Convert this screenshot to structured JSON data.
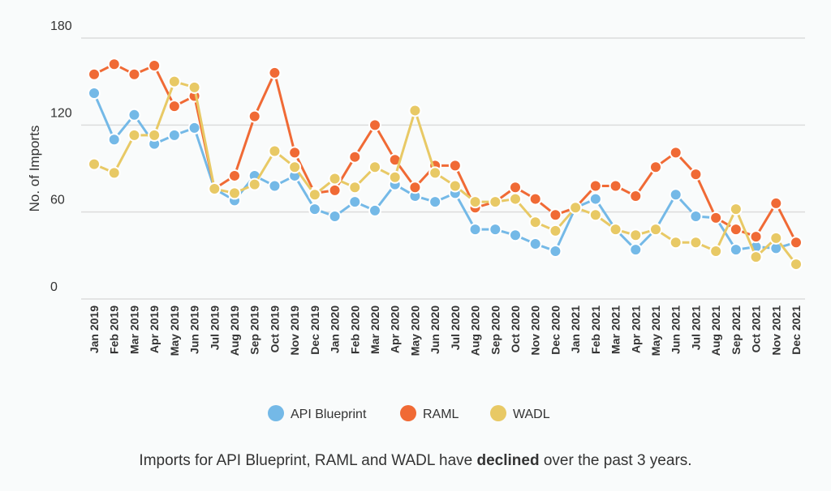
{
  "chart_data": {
    "type": "line",
    "title": "",
    "xlabel": "",
    "ylabel": "No. of Imports",
    "ylim": [
      0,
      180
    ],
    "yticks": [
      0,
      60,
      120,
      180
    ],
    "grid": true,
    "legend_position": "bottom",
    "categories": [
      "Jan 2019",
      "Feb 2019",
      "Mar 2019",
      "Apr 2019",
      "May 2019",
      "Jun 2019",
      "Jul 2019",
      "Aug 2019",
      "Sep 2019",
      "Oct 2019",
      "Nov 2019",
      "Dec 2019",
      "Jan 2020",
      "Feb 2020",
      "Mar 2020",
      "Apr 2020",
      "May 2020",
      "Jun 2020",
      "Jul 2020",
      "Aug 2020",
      "Sep 2020",
      "Oct 2020",
      "Nov 2020",
      "Dec 2020",
      "Jan 2021",
      "Feb 2021",
      "Mar 2021",
      "Apr 2021",
      "May 2021",
      "Jun 2021",
      "Jul 2021",
      "Aug 2021",
      "Sep 2021",
      "Oct 2021",
      "Nov 2021",
      "Dec 2021"
    ],
    "series": [
      {
        "name": "API Blueprint",
        "color": "#74b9e7",
        "values": [
          142,
          110,
          127,
          107,
          113,
          118,
          76,
          68,
          85,
          78,
          85,
          62,
          57,
          67,
          61,
          79,
          71,
          67,
          73,
          48,
          48,
          44,
          38,
          33,
          63,
          69,
          48,
          34,
          48,
          72,
          57,
          56,
          34,
          36,
          35,
          39
        ]
      },
      {
        "name": "RAML",
        "color": "#f06a35",
        "values": [
          155,
          162,
          155,
          161,
          133,
          140,
          76,
          85,
          126,
          156,
          101,
          73,
          75,
          98,
          120,
          96,
          77,
          92,
          92,
          63,
          67,
          77,
          69,
          58,
          63,
          78,
          78,
          71,
          91,
          101,
          86,
          56,
          48,
          43,
          66,
          39
        ]
      },
      {
        "name": "WADL",
        "color": "#e8c965",
        "values": [
          93,
          87,
          113,
          113,
          150,
          146,
          76,
          73,
          79,
          102,
          91,
          72,
          83,
          77,
          91,
          84,
          130,
          87,
          78,
          67,
          67,
          69,
          53,
          47,
          63,
          58,
          48,
          44,
          48,
          39,
          39,
          33,
          62,
          29,
          42,
          24
        ]
      }
    ]
  },
  "caption": {
    "before": "Imports for API Blueprint, RAML and WADL have ",
    "bold": "declined",
    "after": " over the past 3 years."
  }
}
